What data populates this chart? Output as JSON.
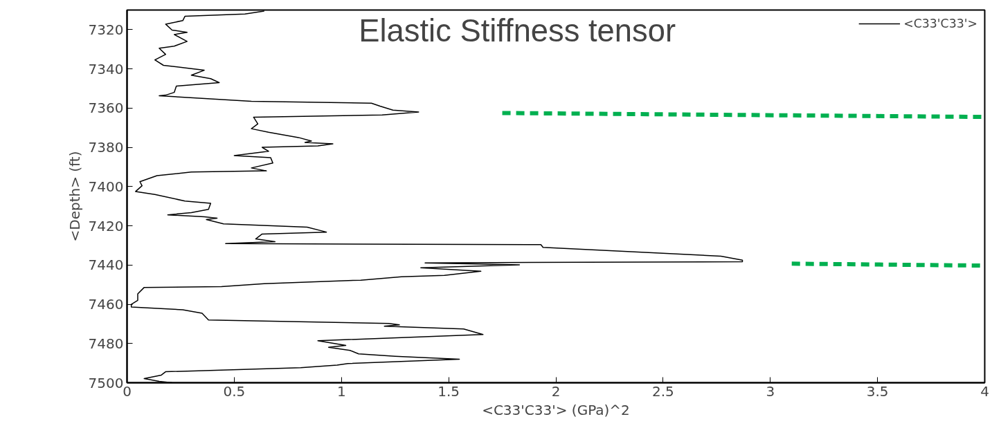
{
  "chart_data": {
    "type": "line",
    "title": "Elastic Stiffness  tensor",
    "xlabel": "<C33'C33'> (GPa)^2",
    "ylabel": "<Depth> (ft)",
    "xlim": [
      0,
      4
    ],
    "ylim": [
      7500,
      7310
    ],
    "xticks": [
      0,
      0.5,
      1,
      1.5,
      2,
      2.5,
      3,
      3.5,
      4
    ],
    "yticks": [
      7320,
      7340,
      7360,
      7380,
      7400,
      7420,
      7440,
      7460,
      7480,
      7500
    ],
    "grid": false,
    "legend": "top right",
    "marker": "none",
    "series": [
      {
        "name": "<C33'C33'>",
        "color": "#000000",
        "line_style": "solid",
        "x": [
          0.64,
          0.55,
          0.27,
          0.26,
          0.18,
          0.21,
          0.28,
          0.22,
          0.28,
          0.22,
          0.15,
          0.18,
          0.13,
          0.17,
          0.28,
          0.36,
          0.3,
          0.39,
          0.43,
          0.23,
          0.22,
          0.18,
          0.15,
          0.58,
          1.14,
          1.18,
          1.24,
          1.36,
          1.19,
          0.59,
          0.61,
          0.58,
          0.66,
          0.8,
          0.86,
          0.83,
          0.96,
          0.89,
          0.63,
          0.66,
          0.5,
          0.67,
          0.68,
          0.58,
          0.65,
          0.3,
          0.14,
          0.06,
          0.07,
          0.04,
          0.13,
          0.27,
          0.39,
          0.38,
          0.3,
          0.19,
          0.36,
          0.42,
          0.37,
          0.45,
          0.84,
          0.93,
          0.63,
          0.6,
          0.69,
          0.46,
          1.93,
          1.94,
          2.4,
          2.77,
          2.87,
          2.87,
          1.39,
          1.83,
          1.37,
          1.65,
          1.48,
          1.28,
          1.09,
          0.64,
          0.44,
          0.08,
          0.05,
          0.05,
          0.02,
          0.02,
          0.26,
          0.35,
          0.38,
          1.22,
          1.27,
          1.2,
          1.57,
          1.66,
          0.89,
          1.02,
          0.94,
          1.04,
          1.08,
          1.25,
          1.55,
          1.03,
          0.98,
          0.81,
          0.18,
          0.16,
          0.08,
          0.15,
          0.21
        ],
        "values": [
          7310.5,
          7312,
          7313.2,
          7315.4,
          7317.2,
          7320.2,
          7321.4,
          7322.5,
          7326,
          7328.4,
          7329.5,
          7332.6,
          7335.4,
          7338.2,
          7339.6,
          7340.7,
          7343.2,
          7345,
          7347,
          7348.8,
          7352,
          7353.4,
          7353.7,
          7356.5,
          7357.5,
          7359,
          7361,
          7362,
          7363.5,
          7364.6,
          7368,
          7370.5,
          7372.3,
          7375,
          7376.8,
          7377.5,
          7378.2,
          7379.3,
          7380,
          7382,
          7384.2,
          7385.3,
          7388,
          7390.5,
          7392,
          7392.6,
          7394.4,
          7397.5,
          7399.6,
          7402.5,
          7404,
          7407.4,
          7408.5,
          7411.6,
          7413.3,
          7414.4,
          7415.4,
          7416.1,
          7416.8,
          7419,
          7420.7,
          7423.2,
          7424.2,
          7426.7,
          7428.1,
          7429.1,
          7429.6,
          7431,
          7433.5,
          7435.5,
          7437.5,
          7438.3,
          7438.9,
          7439.9,
          7441.4,
          7443.2,
          7445.3,
          7446,
          7447.7,
          7449.5,
          7451,
          7451.4,
          7454.7,
          7458,
          7460,
          7461.4,
          7462.8,
          7464.6,
          7468,
          7469.8,
          7470.5,
          7471.2,
          7472.6,
          7475.4,
          7478.6,
          7481,
          7481.9,
          7483.5,
          7485.3,
          7486.5,
          7488,
          7490.2,
          7491,
          7492.3,
          7494.4,
          7496.1,
          7497.9,
          7499.3,
          7500
        ]
      },
      {
        "color": "#00b050",
        "line_style": "dashed",
        "x": [
          1.75,
          4
        ],
        "values": [
          7362.5,
          7364.5
        ]
      },
      {
        "color": "#00b050",
        "line_style": "dashed",
        "x": [
          3.1,
          4
        ],
        "values": [
          7439.3,
          7440.3
        ]
      }
    ]
  }
}
